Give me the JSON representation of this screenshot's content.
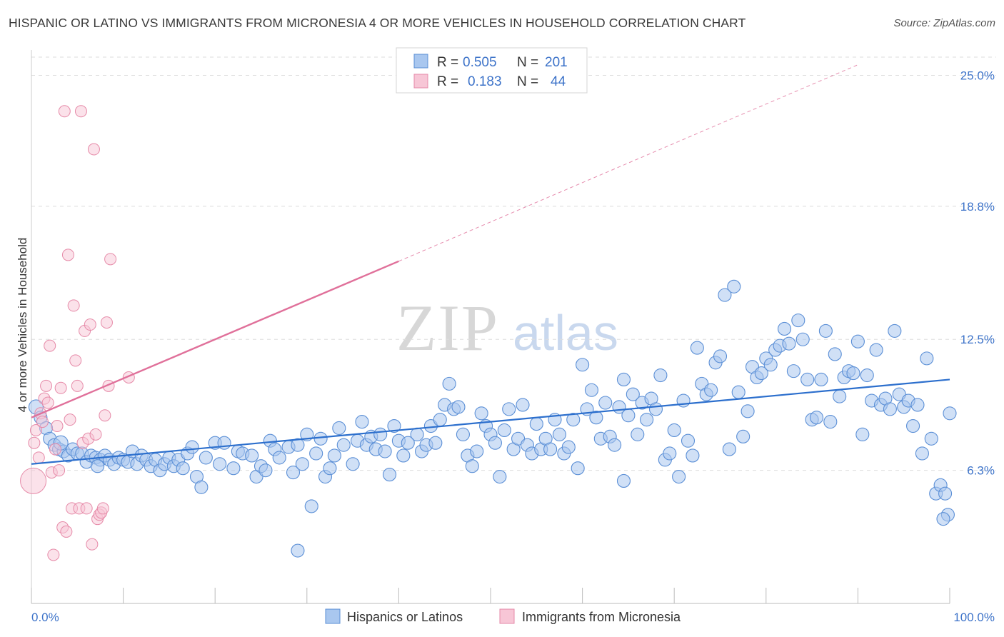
{
  "title": "HISPANIC OR LATINO VS IMMIGRANTS FROM MICRONESIA 4 OR MORE VEHICLES IN HOUSEHOLD CORRELATION CHART",
  "source": "Source: ZipAtlas.com",
  "watermark": {
    "zip": "ZIP",
    "atlas": "atlas"
  },
  "colors": {
    "blue_fill": "#a9c7ef",
    "blue_stroke": "#5b8fd6",
    "blue_line": "#2c6fcd",
    "pink_fill": "#f7c6d6",
    "pink_stroke": "#e68aa8",
    "pink_line": "#e0709a",
    "tick_text": "#3d73c9",
    "grid": "#dddddd"
  },
  "legend_stats": [
    {
      "r_label": "R =",
      "r_value": "0.505",
      "n_label": "N =",
      "n_value": "201"
    },
    {
      "r_label": "R =",
      "r_value": "0.183",
      "n_label": "N =",
      "n_value": "44"
    }
  ],
  "chart_data": {
    "type": "scatter",
    "xlabel": "",
    "ylabel": "4 or more Vehicles in Household",
    "xlim": [
      0,
      100
    ],
    "ylim": [
      0,
      26.2
    ],
    "x_tick_labels": [
      "0.0%",
      "100.0%"
    ],
    "y_ticks": [
      6.3,
      12.5,
      18.8,
      25.0
    ],
    "y_tick_labels": [
      "6.3%",
      "12.5%",
      "18.8%",
      "25.0%"
    ],
    "grid": true,
    "legend_position": "bottom",
    "series": [
      {
        "name": "Hispanics or Latinos",
        "trend": {
          "x": [
            0,
            100
          ],
          "y": [
            6.6,
            10.6
          ]
        },
        "points": [
          [
            0.5,
            9.3
          ],
          [
            1.0,
            8.8
          ],
          [
            1.6,
            8.3
          ],
          [
            2.0,
            7.8
          ],
          [
            2.5,
            7.5
          ],
          [
            3.0,
            7.3
          ],
          [
            3.5,
            7.2
          ],
          [
            3.2,
            7.6
          ],
          [
            4.0,
            7.0
          ],
          [
            4.5,
            7.3
          ],
          [
            5.0,
            7.1
          ],
          [
            5.5,
            7.1
          ],
          [
            6.0,
            6.7
          ],
          [
            6.5,
            7.0
          ],
          [
            7.0,
            6.9
          ],
          [
            7.5,
            6.8
          ],
          [
            7.2,
            6.5
          ],
          [
            8.0,
            7.0
          ],
          [
            8.5,
            6.8
          ],
          [
            9.0,
            6.6
          ],
          [
            9.5,
            6.9
          ],
          [
            10.0,
            6.8
          ],
          [
            10.5,
            6.7
          ],
          [
            11.0,
            7.2
          ],
          [
            11.5,
            6.6
          ],
          [
            12.0,
            7.0
          ],
          [
            12.5,
            6.8
          ],
          [
            13.0,
            6.5
          ],
          [
            13.5,
            6.8
          ],
          [
            14.0,
            6.3
          ],
          [
            14.5,
            6.6
          ],
          [
            15.0,
            6.9
          ],
          [
            15.5,
            6.5
          ],
          [
            16.0,
            6.8
          ],
          [
            16.5,
            6.4
          ],
          [
            17.0,
            7.1
          ],
          [
            17.5,
            7.4
          ],
          [
            18.0,
            6.0
          ],
          [
            18.5,
            5.5
          ],
          [
            19.0,
            6.9
          ],
          [
            20.0,
            7.6
          ],
          [
            20.5,
            6.6
          ],
          [
            21.0,
            7.6
          ],
          [
            22.0,
            6.4
          ],
          [
            22.5,
            7.2
          ],
          [
            23.0,
            7.1
          ],
          [
            24.0,
            7.0
          ],
          [
            24.5,
            6.0
          ],
          [
            25.0,
            6.5
          ],
          [
            25.5,
            6.3
          ],
          [
            26.0,
            7.7
          ],
          [
            26.5,
            7.3
          ],
          [
            27.0,
            6.9
          ],
          [
            28.0,
            7.4
          ],
          [
            28.5,
            6.2
          ],
          [
            29.0,
            7.5
          ],
          [
            29.5,
            6.6
          ],
          [
            30.0,
            8.0
          ],
          [
            31.0,
            7.1
          ],
          [
            31.5,
            7.8
          ],
          [
            32.0,
            6.0
          ],
          [
            32.5,
            6.4
          ],
          [
            33.0,
            7.0
          ],
          [
            33.5,
            8.3
          ],
          [
            34.0,
            7.5
          ],
          [
            35.0,
            6.6
          ],
          [
            35.5,
            7.7
          ],
          [
            36.0,
            8.6
          ],
          [
            36.5,
            7.5
          ],
          [
            37.0,
            7.9
          ],
          [
            37.5,
            7.3
          ],
          [
            38.0,
            8.0
          ],
          [
            38.5,
            7.2
          ],
          [
            39.0,
            6.1
          ],
          [
            39.5,
            8.4
          ],
          [
            40.0,
            7.7
          ],
          [
            40.5,
            7.0
          ],
          [
            41.0,
            7.6
          ],
          [
            42.0,
            8.0
          ],
          [
            42.5,
            7.2
          ],
          [
            43.0,
            7.5
          ],
          [
            43.5,
            8.4
          ],
          [
            44.0,
            7.6
          ],
          [
            44.5,
            8.7
          ],
          [
            45.0,
            9.4
          ],
          [
            45.5,
            10.4
          ],
          [
            46.0,
            9.2
          ],
          [
            46.5,
            9.3
          ],
          [
            47.0,
            8.0
          ],
          [
            47.5,
            7.0
          ],
          [
            48.0,
            6.5
          ],
          [
            48.5,
            7.2
          ],
          [
            49.0,
            9.0
          ],
          [
            49.5,
            8.4
          ],
          [
            50.0,
            8.0
          ],
          [
            50.5,
            7.6
          ],
          [
            51.0,
            6.0
          ],
          [
            51.5,
            8.2
          ],
          [
            52.0,
            9.2
          ],
          [
            52.5,
            7.3
          ],
          [
            53.0,
            7.8
          ],
          [
            53.5,
            9.4
          ],
          [
            54.0,
            7.5
          ],
          [
            54.5,
            7.1
          ],
          [
            55.0,
            8.5
          ],
          [
            55.5,
            7.3
          ],
          [
            56.0,
            7.8
          ],
          [
            56.5,
            7.3
          ],
          [
            57.0,
            8.7
          ],
          [
            57.5,
            8.0
          ],
          [
            58.0,
            7.1
          ],
          [
            58.5,
            7.4
          ],
          [
            59.0,
            8.7
          ],
          [
            59.5,
            6.4
          ],
          [
            60.0,
            11.3
          ],
          [
            60.5,
            9.2
          ],
          [
            61.0,
            10.1
          ],
          [
            61.5,
            8.8
          ],
          [
            62.0,
            7.8
          ],
          [
            62.5,
            9.5
          ],
          [
            63.0,
            7.9
          ],
          [
            63.5,
            7.5
          ],
          [
            64.0,
            9.3
          ],
          [
            64.5,
            10.6
          ],
          [
            65.0,
            8.9
          ],
          [
            65.5,
            9.9
          ],
          [
            66.0,
            8.0
          ],
          [
            66.5,
            9.5
          ],
          [
            67.0,
            8.7
          ],
          [
            67.5,
            9.7
          ],
          [
            68.0,
            9.2
          ],
          [
            68.5,
            10.8
          ],
          [
            69.0,
            6.8
          ],
          [
            69.5,
            7.1
          ],
          [
            70.0,
            8.2
          ],
          [
            70.5,
            6.0
          ],
          [
            71.0,
            9.6
          ],
          [
            71.5,
            7.7
          ],
          [
            72.0,
            7.0
          ],
          [
            72.5,
            12.1
          ],
          [
            73.0,
            10.4
          ],
          [
            73.5,
            9.9
          ],
          [
            74.0,
            10.1
          ],
          [
            74.5,
            11.4
          ],
          [
            75.0,
            11.7
          ],
          [
            75.5,
            14.6
          ],
          [
            76.0,
            7.3
          ],
          [
            76.5,
            15.0
          ],
          [
            77.0,
            10.0
          ],
          [
            77.5,
            7.9
          ],
          [
            78.0,
            9.1
          ],
          [
            78.5,
            11.2
          ],
          [
            79.0,
            10.7
          ],
          [
            79.5,
            10.9
          ],
          [
            80.0,
            11.6
          ],
          [
            80.5,
            11.3
          ],
          [
            81.0,
            12.0
          ],
          [
            81.5,
            12.2
          ],
          [
            82.0,
            13.0
          ],
          [
            82.5,
            12.3
          ],
          [
            83.0,
            11.0
          ],
          [
            83.5,
            13.4
          ],
          [
            84.0,
            12.5
          ],
          [
            84.5,
            10.6
          ],
          [
            85.0,
            8.7
          ],
          [
            85.5,
            8.8
          ],
          [
            86.0,
            10.6
          ],
          [
            86.5,
            12.9
          ],
          [
            87.0,
            8.6
          ],
          [
            87.5,
            11.8
          ],
          [
            88.0,
            9.8
          ],
          [
            88.5,
            10.7
          ],
          [
            89.0,
            11.0
          ],
          [
            89.5,
            10.9
          ],
          [
            90.0,
            12.4
          ],
          [
            90.5,
            8.0
          ],
          [
            91.0,
            10.8
          ],
          [
            91.5,
            9.6
          ],
          [
            92.0,
            12.0
          ],
          [
            92.5,
            9.4
          ],
          [
            93.0,
            9.7
          ],
          [
            93.5,
            9.2
          ],
          [
            94.0,
            12.9
          ],
          [
            94.5,
            9.9
          ],
          [
            95.0,
            9.3
          ],
          [
            95.5,
            9.6
          ],
          [
            96.0,
            8.4
          ],
          [
            96.5,
            9.4
          ],
          [
            97.0,
            7.1
          ],
          [
            97.5,
            11.6
          ],
          [
            98.0,
            7.8
          ],
          [
            98.5,
            5.2
          ],
          [
            99.0,
            5.6
          ],
          [
            99.5,
            5.2
          ],
          [
            100.0,
            9.0
          ],
          [
            99.8,
            4.2
          ],
          [
            99.3,
            4.0
          ],
          [
            30.5,
            4.6
          ],
          [
            29.0,
            2.5
          ],
          [
            64.5,
            5.8
          ]
        ]
      },
      {
        "name": "Immigrants from Micronesia",
        "trend": {
          "x": [
            0,
            40
          ],
          "y": [
            8.8,
            16.2
          ],
          "dash_to": [
            90,
            25.5
          ]
        },
        "points": [
          [
            0.2,
            5.8
          ],
          [
            0.3,
            7.6
          ],
          [
            0.5,
            8.2
          ],
          [
            0.8,
            6.9
          ],
          [
            1.0,
            9.0
          ],
          [
            1.2,
            8.6
          ],
          [
            1.4,
            9.7
          ],
          [
            1.6,
            10.3
          ],
          [
            1.8,
            9.5
          ],
          [
            2.0,
            12.2
          ],
          [
            2.2,
            6.2
          ],
          [
            2.4,
            2.3
          ],
          [
            2.6,
            7.3
          ],
          [
            2.8,
            8.4
          ],
          [
            3.0,
            6.3
          ],
          [
            3.2,
            10.2
          ],
          [
            3.4,
            3.6
          ],
          [
            3.6,
            23.3
          ],
          [
            3.8,
            3.4
          ],
          [
            4.0,
            16.5
          ],
          [
            4.2,
            8.7
          ],
          [
            4.4,
            4.5
          ],
          [
            4.6,
            14.1
          ],
          [
            4.8,
            11.5
          ],
          [
            5.0,
            10.3
          ],
          [
            5.2,
            4.5
          ],
          [
            5.4,
            23.3
          ],
          [
            5.6,
            7.6
          ],
          [
            5.8,
            12.9
          ],
          [
            6.0,
            4.5
          ],
          [
            6.2,
            7.8
          ],
          [
            6.4,
            13.2
          ],
          [
            6.6,
            2.8
          ],
          [
            6.8,
            21.5
          ],
          [
            7.0,
            8.0
          ],
          [
            7.2,
            4.0
          ],
          [
            7.4,
            4.2
          ],
          [
            7.6,
            4.3
          ],
          [
            7.8,
            4.5
          ],
          [
            8.0,
            8.9
          ],
          [
            8.2,
            13.3
          ],
          [
            8.4,
            10.3
          ],
          [
            8.6,
            16.3
          ],
          [
            10.6,
            10.7
          ]
        ]
      }
    ]
  },
  "bottom_legend": [
    "Hispanics or Latinos",
    "Immigrants from Micronesia"
  ]
}
